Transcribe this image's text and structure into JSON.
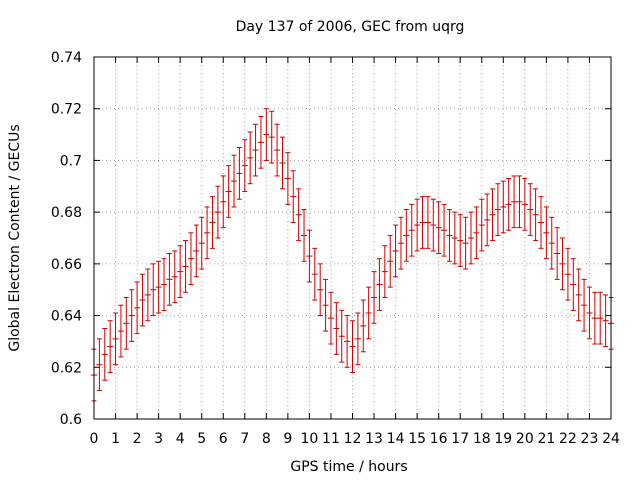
{
  "chart_data": {
    "type": "scatter",
    "title": "Day 137 of 2006, GEC from uqrg",
    "xlabel": "GPS time / hours",
    "ylabel": "Global Electron Content / GECUs",
    "xlim": [
      0,
      24
    ],
    "ylim": [
      0.6,
      0.74
    ],
    "xticks": [
      0,
      1,
      2,
      3,
      4,
      5,
      6,
      7,
      8,
      9,
      10,
      11,
      12,
      13,
      14,
      15,
      16,
      17,
      18,
      19,
      20,
      21,
      22,
      23,
      24
    ],
    "yticks": [
      0.6,
      0.62,
      0.64,
      0.66,
      0.68,
      0.7,
      0.72,
      0.74
    ],
    "ytick_labels": [
      "0.6",
      "0.62",
      "0.64",
      "0.66",
      "0.68",
      "0.7",
      "0.72",
      "0.74"
    ],
    "grid": true,
    "series_color": "#cc0000",
    "error_bar": 0.01,
    "x": [
      0,
      0.25,
      0.5,
      0.75,
      1,
      1.25,
      1.5,
      1.75,
      2,
      2.25,
      2.5,
      2.75,
      3,
      3.25,
      3.5,
      3.75,
      4,
      4.25,
      4.5,
      4.75,
      5,
      5.25,
      5.5,
      5.75,
      6,
      6.25,
      6.5,
      6.75,
      7,
      7.25,
      7.5,
      7.75,
      8,
      8.25,
      8.5,
      8.75,
      9,
      9.25,
      9.5,
      9.75,
      10,
      10.25,
      10.5,
      10.75,
      11,
      11.25,
      11.5,
      11.75,
      12,
      12.25,
      12.5,
      12.75,
      13,
      13.25,
      13.5,
      13.75,
      14,
      14.25,
      14.5,
      14.75,
      15,
      15.25,
      15.5,
      15.75,
      16,
      16.25,
      16.5,
      16.75,
      17,
      17.25,
      17.5,
      17.75,
      18,
      18.25,
      18.5,
      18.75,
      19,
      19.25,
      19.5,
      19.75,
      20,
      20.25,
      20.5,
      20.75,
      21,
      21.25,
      21.5,
      21.75,
      22,
      22.25,
      22.5,
      22.75,
      23,
      23.25,
      23.5,
      23.75,
      24
    ],
    "y": [
      0.617,
      0.621,
      0.625,
      0.628,
      0.631,
      0.634,
      0.637,
      0.64,
      0.643,
      0.646,
      0.648,
      0.65,
      0.651,
      0.652,
      0.654,
      0.655,
      0.657,
      0.659,
      0.662,
      0.665,
      0.668,
      0.672,
      0.676,
      0.68,
      0.684,
      0.688,
      0.692,
      0.695,
      0.698,
      0.701,
      0.704,
      0.707,
      0.71,
      0.709,
      0.704,
      0.699,
      0.693,
      0.686,
      0.679,
      0.671,
      0.663,
      0.656,
      0.65,
      0.644,
      0.639,
      0.635,
      0.632,
      0.63,
      0.628,
      0.631,
      0.636,
      0.641,
      0.647,
      0.652,
      0.657,
      0.661,
      0.665,
      0.668,
      0.671,
      0.673,
      0.675,
      0.676,
      0.676,
      0.675,
      0.674,
      0.673,
      0.671,
      0.67,
      0.669,
      0.668,
      0.67,
      0.672,
      0.675,
      0.677,
      0.679,
      0.681,
      0.682,
      0.683,
      0.684,
      0.684,
      0.683,
      0.681,
      0.679,
      0.676,
      0.672,
      0.668,
      0.664,
      0.66,
      0.656,
      0.652,
      0.648,
      0.644,
      0.641,
      0.639,
      0.639,
      0.638,
      0.637
    ]
  }
}
